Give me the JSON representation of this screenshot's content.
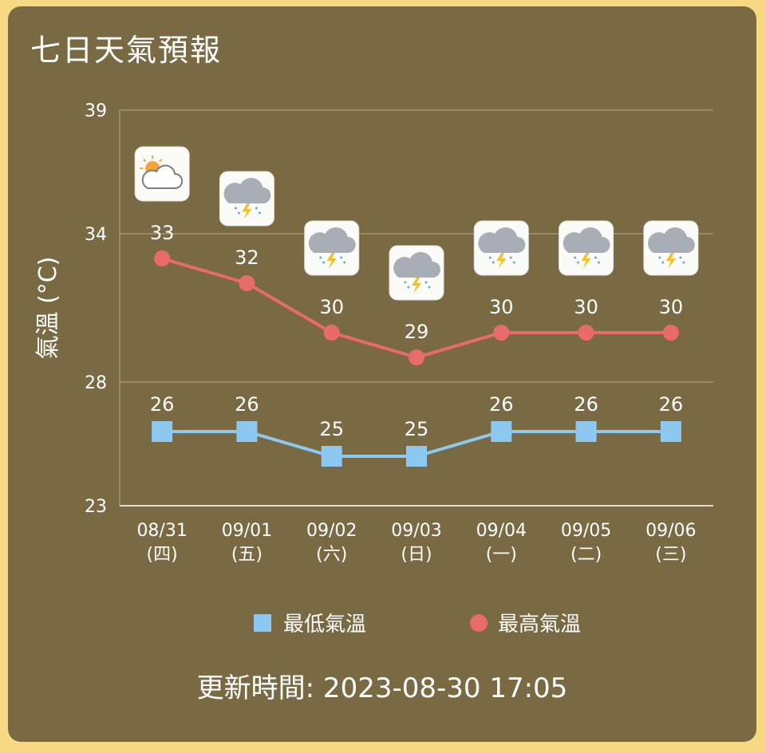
{
  "title": "七日天氣預報",
  "updated": "更新時間: 2023-08-30 17:05",
  "colors": {
    "background": "#f6d982",
    "card": "#7a6a44",
    "grid": "#b9ab85",
    "low": "#8cc8f0",
    "high": "#e96a6a"
  },
  "chart_data": {
    "type": "line",
    "ylabel": "氣溫 (°C)",
    "ylim": [
      23,
      39
    ],
    "yticks": [
      23,
      28,
      34,
      39
    ],
    "categories": [
      "08/31",
      "09/01",
      "09/02",
      "09/03",
      "09/04",
      "09/05",
      "09/06"
    ],
    "weekdays": [
      "(四)",
      "(五)",
      "(六)",
      "(日)",
      "(一)",
      "(二)",
      "(三)"
    ],
    "icons": [
      "partly-cloudy-icon",
      "thunderstorm-icon",
      "thunderstorm-icon",
      "thunderstorm-icon",
      "thunderstorm-icon",
      "thunderstorm-icon",
      "thunderstorm-icon"
    ],
    "series": [
      {
        "name": "最低氣溫",
        "marker": "square",
        "color": "#8cc8f0",
        "values": [
          26,
          26,
          25,
          25,
          26,
          26,
          26
        ]
      },
      {
        "name": "最高氣溫",
        "marker": "circle",
        "color": "#e96a6a",
        "values": [
          33,
          32,
          30,
          29,
          30,
          30,
          30
        ]
      }
    ],
    "legend": "bottom"
  }
}
